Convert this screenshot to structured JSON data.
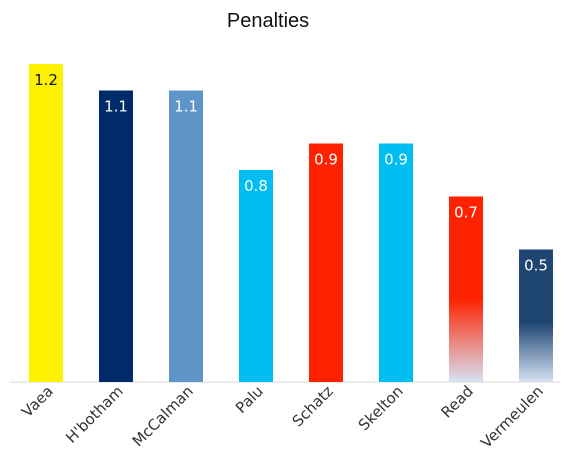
{
  "chart_data": {
    "type": "bar",
    "title": "Penalties",
    "xlabel": "",
    "ylabel": "",
    "ylim": [
      0,
      1.2
    ],
    "grid": false,
    "legend": "none",
    "categories": [
      "Vaea",
      "H'botham",
      "McCalman",
      "Palu",
      "Schatz",
      "Skelton",
      "Read",
      "Vermeulen"
    ],
    "values": [
      1.2,
      1.1,
      1.1,
      0.8,
      0.9,
      0.9,
      0.7,
      0.5
    ],
    "value_labels": [
      "1.2",
      "1.1",
      "1.1",
      "0.8",
      "0.9",
      "0.9",
      "0.7",
      "0.5"
    ],
    "bar_colors": [
      "#fff200",
      "#002b6b",
      "#5f95c9",
      "#00bdf2",
      "#ff2200",
      "#00bdf2",
      "#ff2200",
      "#1f4673"
    ],
    "value_label_colors": [
      "#111111",
      "#ffffff",
      "#ffffff",
      "#ffffff",
      "#ffffff",
      "#ffffff",
      "#ffffff",
      "#ffffff"
    ],
    "fade_to_bottom": [
      false,
      false,
      false,
      false,
      false,
      false,
      true,
      true
    ],
    "fade_color": "#d6e2f4"
  }
}
